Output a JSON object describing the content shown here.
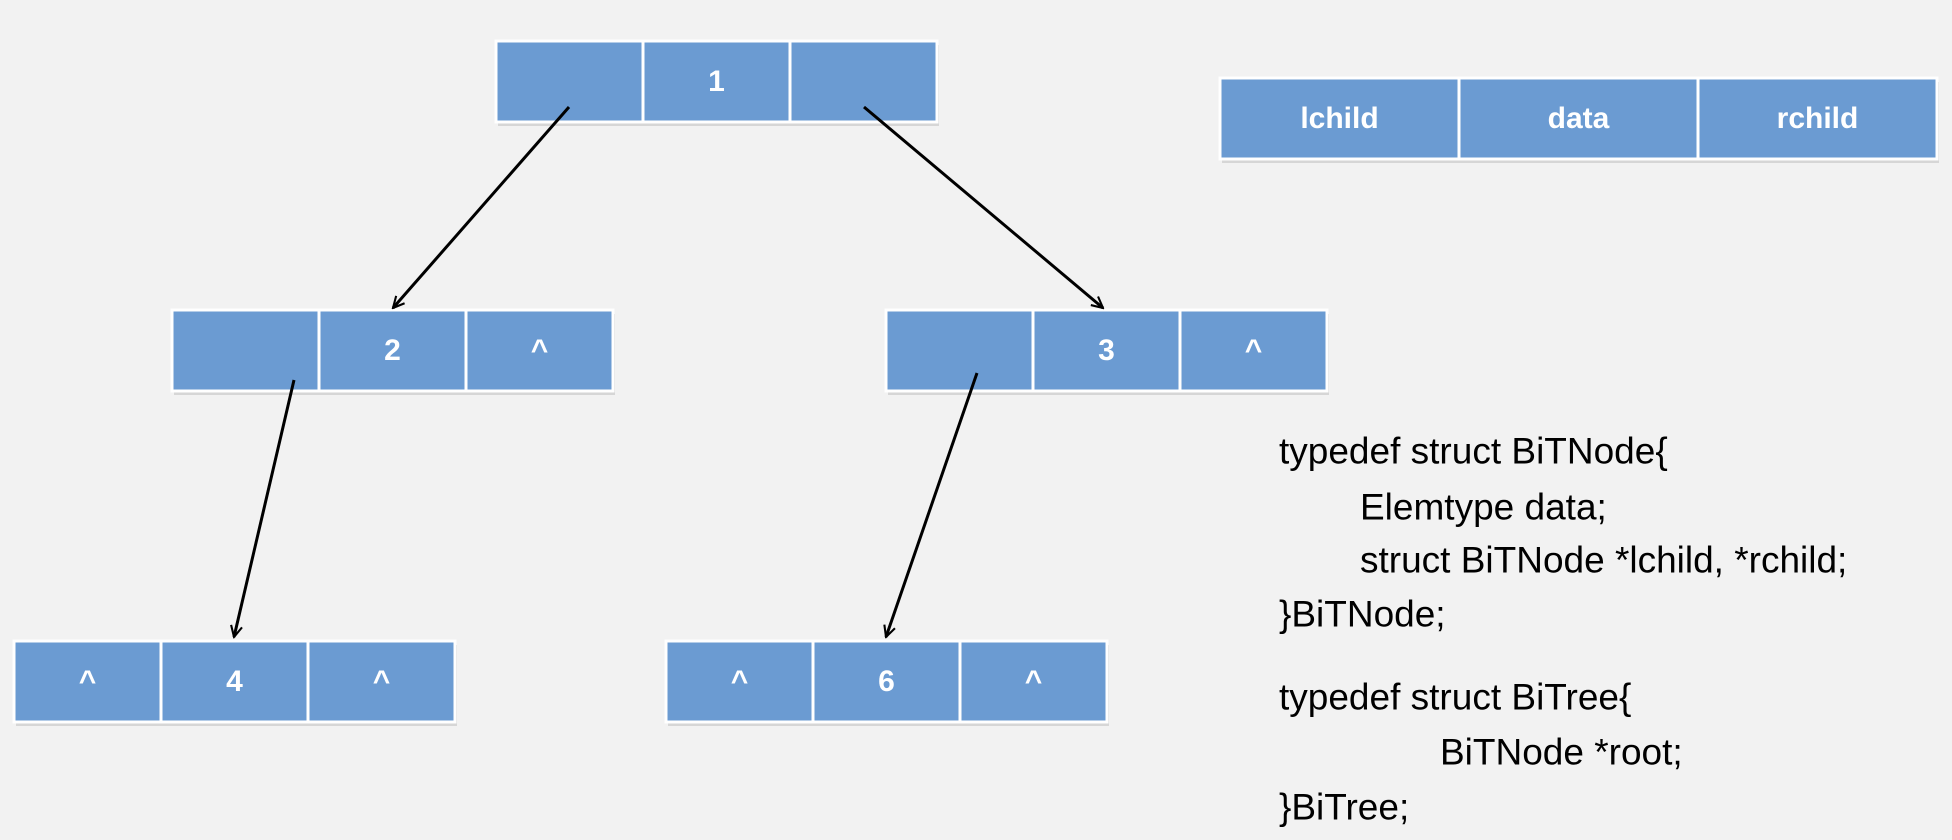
{
  "legend": {
    "lchild": "lchild",
    "data": "data",
    "rchild": "rchild"
  },
  "nodes": [
    {
      "data": "1"
    },
    {
      "data": "2",
      "rchild": "^"
    },
    {
      "data": "3",
      "rchild": "^"
    },
    {
      "lchild": "^",
      "data": "4",
      "rchild": "^"
    },
    {
      "lchild": "^",
      "data": "6",
      "rchild": "^"
    }
  ],
  "code": [
    [
      "typedef struct BiTNode{",
      "Elemtype data;",
      "struct BiTNode *lchild, *rchild;",
      "}BiTNode;"
    ],
    [
      "typedef struct BiTree{",
      "BiTNode *root;",
      "}BiTree;"
    ]
  ]
}
